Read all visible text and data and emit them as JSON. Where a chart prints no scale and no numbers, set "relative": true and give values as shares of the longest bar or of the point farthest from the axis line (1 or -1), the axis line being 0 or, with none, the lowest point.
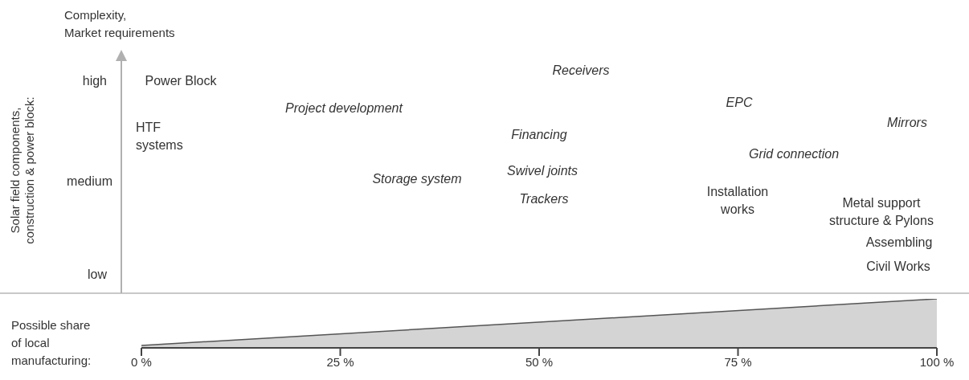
{
  "chart_data": [
    {
      "type": "other",
      "title": "Complexity,\nMarket requirements",
      "ylabel": "Solar field components,\nconstruction & power block:",
      "annotations": [
        "high",
        "medium",
        "low",
        "Power Block",
        "HTF\nsystems",
        "Project development",
        "Receivers",
        "Financing",
        "Swivel joints",
        "Storage system",
        "Trackers",
        "EPC",
        "Grid connection",
        "Mirrors",
        "Installation\nworks",
        "Metal support\nstructure & Pylons",
        "Assembling",
        "Civil Works"
      ]
    },
    {
      "type": "area",
      "xlabel": "Possible share\nof local\nmanufacturing:",
      "relative": true,
      "x": [
        0,
        100
      ],
      "values": [
        0.05,
        1
      ],
      "color": "#d4d4d4",
      "xlim": [
        0,
        100
      ],
      "xticks": [
        {
          "value": 0,
          "label": "0 %"
        },
        {
          "value": 25,
          "label": "25 %"
        },
        {
          "value": 50,
          "label": "50 %"
        },
        {
          "value": 75,
          "label": "75 %"
        },
        {
          "value": 100,
          "label": "100 %"
        }
      ]
    }
  ]
}
